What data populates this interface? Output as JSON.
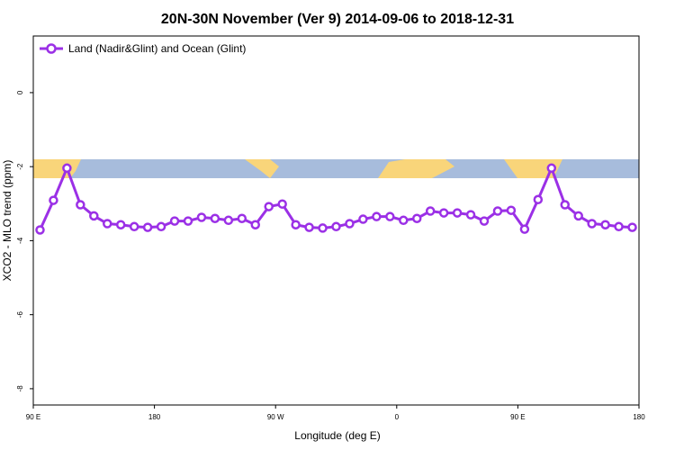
{
  "chart_data": {
    "type": "line",
    "title": "20N-30N November (Ver 9)   2014-09-06 to 2018-12-31",
    "x_label": "Longitude (deg E)",
    "y_label": "XCO2 - MLO trend (ppm)",
    "x": [
      95,
      105,
      115,
      125,
      135,
      145,
      155,
      165,
      175,
      185,
      195,
      205,
      215,
      225,
      235,
      245,
      255,
      265,
      275,
      285,
      295,
      305,
      315,
      325,
      335,
      345,
      355,
      365,
      375,
      385,
      395,
      405,
      415,
      425,
      435,
      445,
      455,
      465,
      475,
      485,
      495,
      505,
      515,
      525,
      535
    ],
    "series": [
      {
        "name": "Land (Nadir&Glint) and Ocean (Glint)",
        "color": "#9b30e6",
        "values": [
          -3.71,
          -2.91,
          -2.04,
          -3.03,
          -3.33,
          -3.54,
          -3.57,
          -3.62,
          -3.64,
          -3.62,
          -3.47,
          -3.47,
          -3.37,
          -3.4,
          -3.45,
          -3.4,
          -3.57,
          -3.08,
          -3.01,
          -3.57,
          -3.64,
          -3.66,
          -3.62,
          -3.54,
          -3.42,
          -3.35,
          -3.35,
          -3.45,
          -3.4,
          -3.2,
          -3.25,
          -3.25,
          -3.3,
          -3.47,
          -3.2,
          -3.18,
          -3.69,
          -2.89,
          -2.04,
          -3.03,
          -3.33,
          -3.54,
          -3.57,
          -3.62,
          -3.64
        ]
      }
    ],
    "xlim": [
      90,
      540
    ],
    "xticks": [
      {
        "value": 90,
        "label": "90 E"
      },
      180,
      {
        "value": 270,
        "label": "90 W"
      },
      {
        "value": 360,
        "label": "0"
      },
      {
        "value": 450,
        "label": "90 E"
      },
      {
        "value": 540,
        "label": "180"
      }
    ],
    "ylim": [
      -8.44,
      1.53
    ],
    "yticks": [
      0,
      -2,
      -4,
      -6,
      -8
    ],
    "legend": "top-left"
  }
}
